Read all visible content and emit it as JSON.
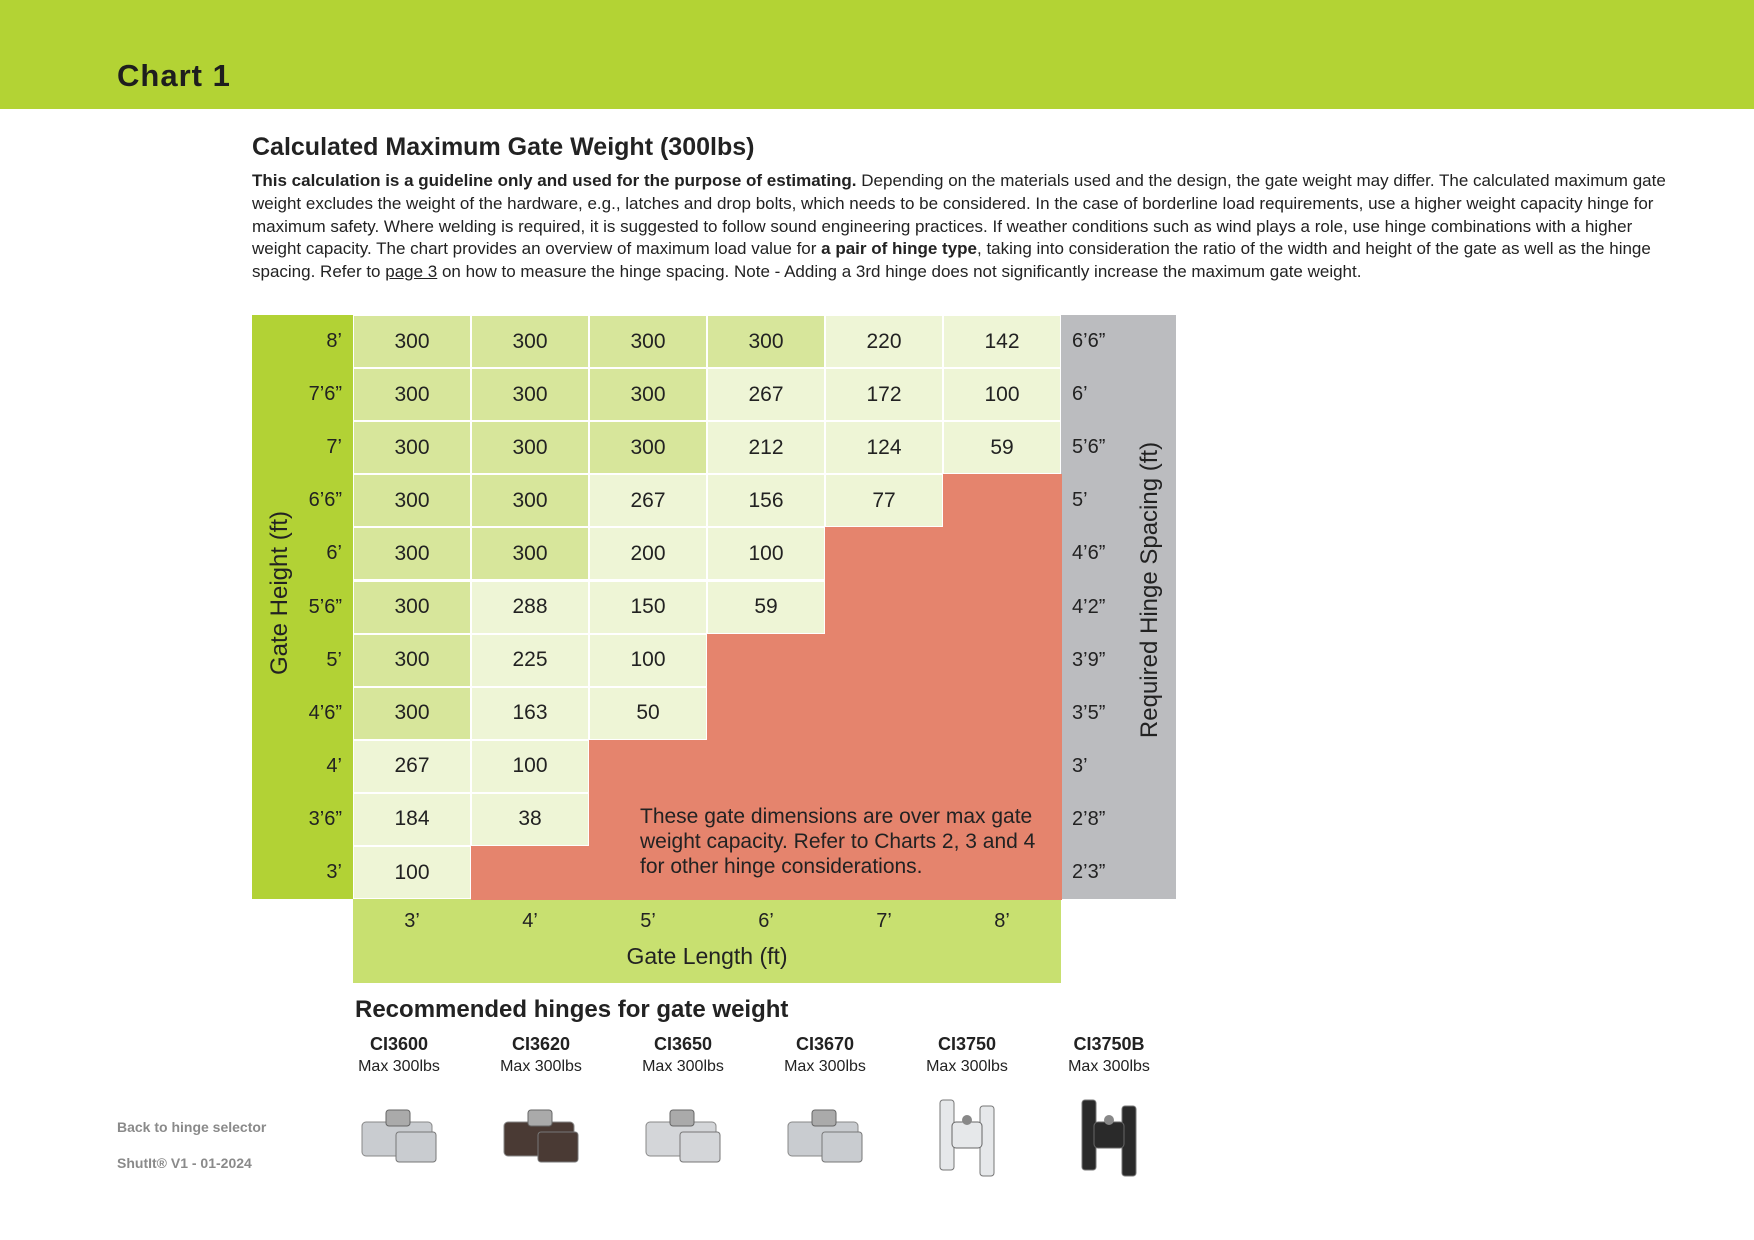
{
  "header": {
    "title": "Chart 1"
  },
  "section": {
    "title": "Calculated Maximum Gate Weight (300lbs)",
    "intro": [
      "This calculation is a guideline only and used for the purpose of estimating.",
      " Depending on the materials used and the design, the gate weight may differ. The calculated maximum gate weight excludes the weight of the hardware, e.g., latches and drop bolts, which needs to be considered. In the case of borderline load requirements, use a higher weight capacity hinge for maximum safety. Where welding is required, it is suggested to follow sound engineering practices. If weather conditions such as wind plays a role, use hinge combinations with a higher weight capacity. The chart provides an overview of maximum load value for ",
      "a pair of hinge type",
      ", taking into consideration the ratio of the width and height of the gate as well as the hinge spacing. Refer to ",
      "page 3",
      " on how to measure the hinge spacing. Note - Adding a 3rd hinge does not significantly increase the maximum gate weight."
    ]
  },
  "table": {
    "row_axis_label": "Gate Height (ft)",
    "spacing_axis_label": "Required Hinge Spacing (ft)",
    "column_axis_label": "Gate Length (ft)",
    "columns": [
      "3’",
      "4’",
      "5’",
      "6’",
      "7’",
      "8’"
    ],
    "rows": [
      {
        "height": "8’",
        "values": [
          300,
          300,
          300,
          300,
          220,
          142
        ],
        "spacing": "6’6”"
      },
      {
        "height": "7’6”",
        "values": [
          300,
          300,
          300,
          267,
          172,
          100
        ],
        "spacing": "6’"
      },
      {
        "height": "7’",
        "values": [
          300,
          300,
          300,
          212,
          124,
          59
        ],
        "spacing": "5’6”"
      },
      {
        "height": "6’6”",
        "values": [
          300,
          300,
          267,
          156,
          77,
          null
        ],
        "spacing": "5’"
      },
      {
        "height": "6’",
        "values": [
          300,
          300,
          200,
          100,
          null,
          null
        ],
        "spacing": "4’6”"
      },
      {
        "height": "5’6”",
        "values": [
          300,
          288,
          150,
          59,
          null,
          null
        ],
        "spacing": "4’2”"
      },
      {
        "height": "5’",
        "values": [
          300,
          225,
          100,
          null,
          null,
          null
        ],
        "spacing": "3’9”"
      },
      {
        "height": "4’6”",
        "values": [
          300,
          163,
          50,
          null,
          null,
          null
        ],
        "spacing": "3’5”"
      },
      {
        "height": "4’",
        "values": [
          267,
          100,
          null,
          null,
          null,
          null
        ],
        "spacing": "3’"
      },
      {
        "height": "3’6”",
        "values": [
          184,
          38,
          null,
          null,
          null,
          null
        ],
        "spacing": "2’8”"
      },
      {
        "height": "3’",
        "values": [
          100,
          null,
          null,
          null,
          null,
          null
        ],
        "spacing": "2’3”"
      }
    ],
    "over_capacity_note": "These gate dimensions are over max gate weight capacity. Refer to Charts 2, 3 and 4 for other hinge considerations."
  },
  "hinges": {
    "title": "Recommended hinges for gate weight",
    "items": [
      {
        "name": "CI3600",
        "capacity": "Max 300lbs"
      },
      {
        "name": "CI3620",
        "capacity": "Max 300lbs"
      },
      {
        "name": "CI3650",
        "capacity": "Max 300lbs"
      },
      {
        "name": "CI3670",
        "capacity": "Max 300lbs"
      },
      {
        "name": "CI3750",
        "capacity": "Max 300lbs"
      },
      {
        "name": "CI3750B",
        "capacity": "Max 300lbs"
      }
    ]
  },
  "footer": {
    "back_link": "Back to hinge selector",
    "version": "ShutIt® V1 - 01-2024"
  }
}
